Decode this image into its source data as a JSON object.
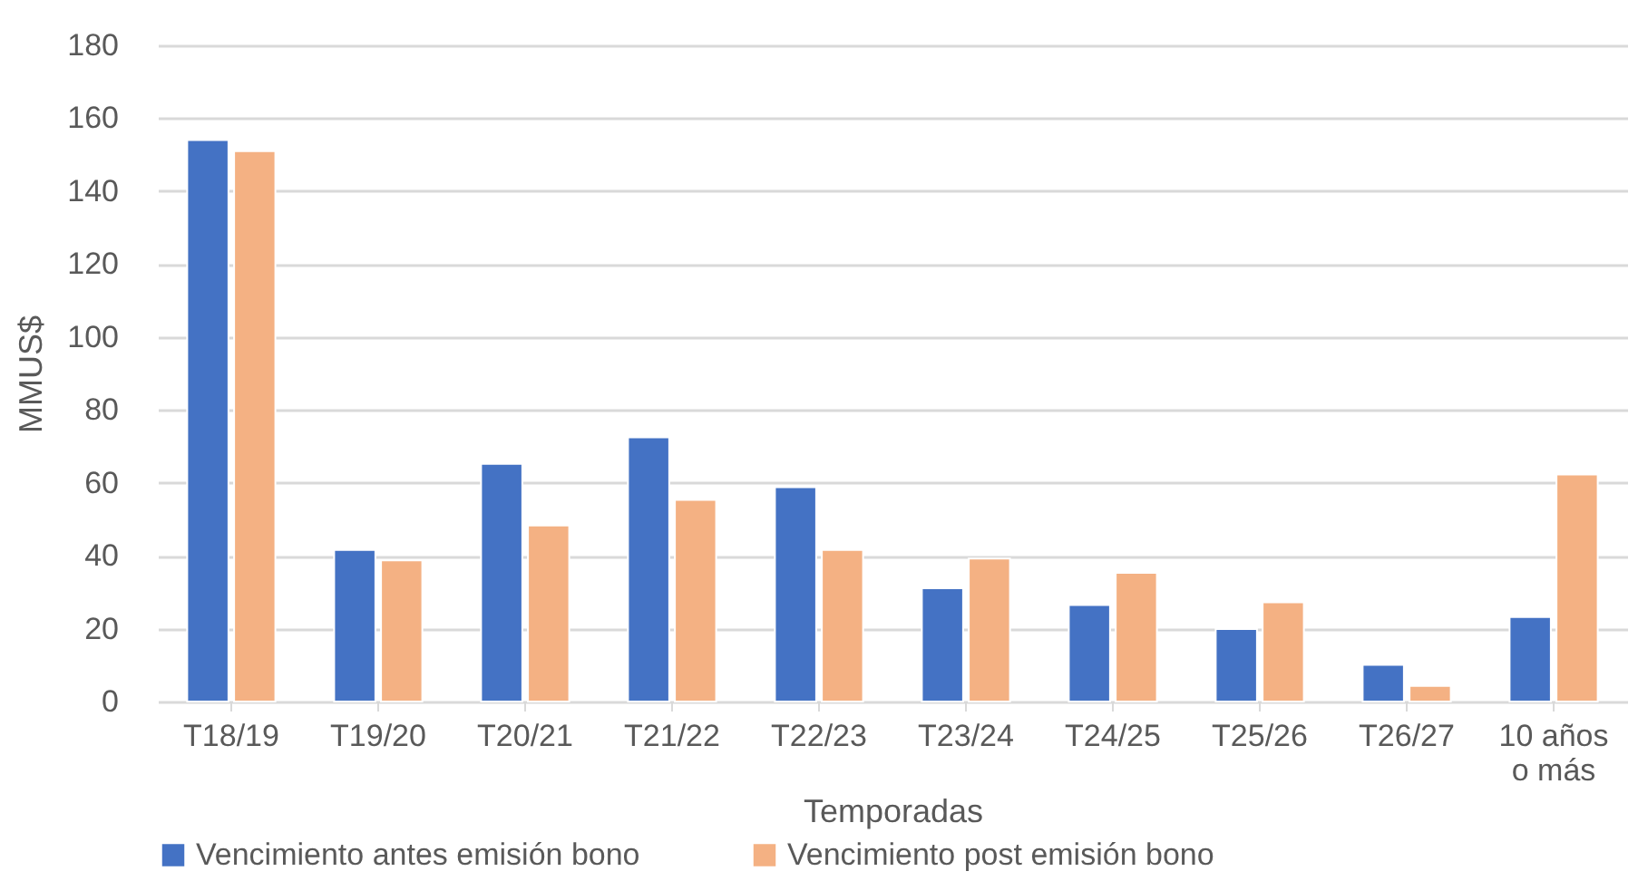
{
  "chart_data": {
    "type": "bar",
    "xlabel": "Temporadas",
    "ylabel": "MMUS$",
    "categories": [
      "T18/19",
      "T19/20",
      "T20/21",
      "T21/22",
      "T22/23",
      "T23/24",
      "T24/25",
      "T25/26",
      "T26/27",
      "10 años o más"
    ],
    "series": [
      {
        "name": "Vencimiento antes emisión bono",
        "color": "#4472c4",
        "values": [
          154,
          41.6,
          65.2,
          72.5,
          58.8,
          31.1,
          26.5,
          19.9,
          10.1,
          23.2
        ]
      },
      {
        "name": "Vencimiento post emisión bono",
        "color": "#f4b183",
        "values": [
          151,
          38.7,
          48.3,
          55.3,
          41.6,
          39.2,
          35.3,
          27.2,
          4.3,
          62.3
        ]
      }
    ],
    "ylim": [
      0,
      180
    ],
    "yticks": [
      0,
      20,
      40,
      60,
      80,
      100,
      120,
      140,
      160,
      180
    ],
    "grid": "y",
    "legend": "bottom"
  }
}
